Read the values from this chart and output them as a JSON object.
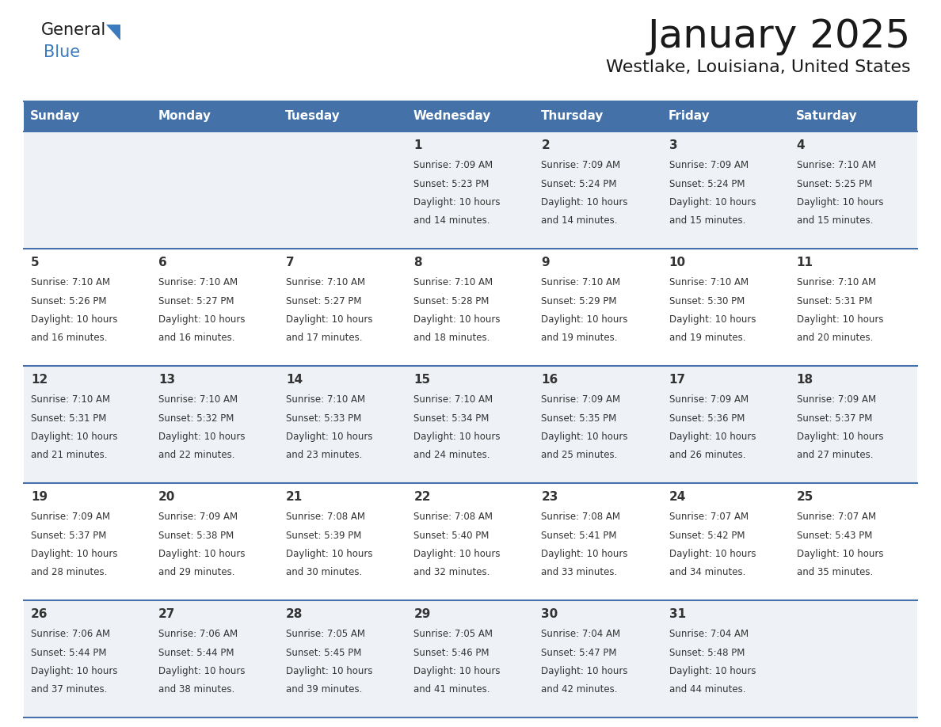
{
  "title": "January 2025",
  "subtitle": "Westlake, Louisiana, United States",
  "header_color": "#4472a8",
  "header_text_color": "#ffffff",
  "day_names": [
    "Sunday",
    "Monday",
    "Tuesday",
    "Wednesday",
    "Thursday",
    "Friday",
    "Saturday"
  ],
  "background_color": "#ffffff",
  "cell_bg_even": "#eef2f7",
  "cell_bg_odd": "#ffffff",
  "cell_border_color": "#4472a8",
  "text_color": "#333333",
  "title_fontsize": 36,
  "subtitle_fontsize": 16,
  "header_fontsize": 11,
  "day_num_fontsize": 11,
  "info_fontsize": 8.5,
  "days_data": [
    {
      "day": 1,
      "col": 3,
      "row": 0,
      "sunrise": "7:09 AM",
      "sunset": "5:23 PM",
      "daylight_hours": 10,
      "daylight_minutes": 14
    },
    {
      "day": 2,
      "col": 4,
      "row": 0,
      "sunrise": "7:09 AM",
      "sunset": "5:24 PM",
      "daylight_hours": 10,
      "daylight_minutes": 14
    },
    {
      "day": 3,
      "col": 5,
      "row": 0,
      "sunrise": "7:09 AM",
      "sunset": "5:24 PM",
      "daylight_hours": 10,
      "daylight_minutes": 15
    },
    {
      "day": 4,
      "col": 6,
      "row": 0,
      "sunrise": "7:10 AM",
      "sunset": "5:25 PM",
      "daylight_hours": 10,
      "daylight_minutes": 15
    },
    {
      "day": 5,
      "col": 0,
      "row": 1,
      "sunrise": "7:10 AM",
      "sunset": "5:26 PM",
      "daylight_hours": 10,
      "daylight_minutes": 16
    },
    {
      "day": 6,
      "col": 1,
      "row": 1,
      "sunrise": "7:10 AM",
      "sunset": "5:27 PM",
      "daylight_hours": 10,
      "daylight_minutes": 16
    },
    {
      "day": 7,
      "col": 2,
      "row": 1,
      "sunrise": "7:10 AM",
      "sunset": "5:27 PM",
      "daylight_hours": 10,
      "daylight_minutes": 17
    },
    {
      "day": 8,
      "col": 3,
      "row": 1,
      "sunrise": "7:10 AM",
      "sunset": "5:28 PM",
      "daylight_hours": 10,
      "daylight_minutes": 18
    },
    {
      "day": 9,
      "col": 4,
      "row": 1,
      "sunrise": "7:10 AM",
      "sunset": "5:29 PM",
      "daylight_hours": 10,
      "daylight_minutes": 19
    },
    {
      "day": 10,
      "col": 5,
      "row": 1,
      "sunrise": "7:10 AM",
      "sunset": "5:30 PM",
      "daylight_hours": 10,
      "daylight_minutes": 19
    },
    {
      "day": 11,
      "col": 6,
      "row": 1,
      "sunrise": "7:10 AM",
      "sunset": "5:31 PM",
      "daylight_hours": 10,
      "daylight_minutes": 20
    },
    {
      "day": 12,
      "col": 0,
      "row": 2,
      "sunrise": "7:10 AM",
      "sunset": "5:31 PM",
      "daylight_hours": 10,
      "daylight_minutes": 21
    },
    {
      "day": 13,
      "col": 1,
      "row": 2,
      "sunrise": "7:10 AM",
      "sunset": "5:32 PM",
      "daylight_hours": 10,
      "daylight_minutes": 22
    },
    {
      "day": 14,
      "col": 2,
      "row": 2,
      "sunrise": "7:10 AM",
      "sunset": "5:33 PM",
      "daylight_hours": 10,
      "daylight_minutes": 23
    },
    {
      "day": 15,
      "col": 3,
      "row": 2,
      "sunrise": "7:10 AM",
      "sunset": "5:34 PM",
      "daylight_hours": 10,
      "daylight_minutes": 24
    },
    {
      "day": 16,
      "col": 4,
      "row": 2,
      "sunrise": "7:09 AM",
      "sunset": "5:35 PM",
      "daylight_hours": 10,
      "daylight_minutes": 25
    },
    {
      "day": 17,
      "col": 5,
      "row": 2,
      "sunrise": "7:09 AM",
      "sunset": "5:36 PM",
      "daylight_hours": 10,
      "daylight_minutes": 26
    },
    {
      "day": 18,
      "col": 6,
      "row": 2,
      "sunrise": "7:09 AM",
      "sunset": "5:37 PM",
      "daylight_hours": 10,
      "daylight_minutes": 27
    },
    {
      "day": 19,
      "col": 0,
      "row": 3,
      "sunrise": "7:09 AM",
      "sunset": "5:37 PM",
      "daylight_hours": 10,
      "daylight_minutes": 28
    },
    {
      "day": 20,
      "col": 1,
      "row": 3,
      "sunrise": "7:09 AM",
      "sunset": "5:38 PM",
      "daylight_hours": 10,
      "daylight_minutes": 29
    },
    {
      "day": 21,
      "col": 2,
      "row": 3,
      "sunrise": "7:08 AM",
      "sunset": "5:39 PM",
      "daylight_hours": 10,
      "daylight_minutes": 30
    },
    {
      "day": 22,
      "col": 3,
      "row": 3,
      "sunrise": "7:08 AM",
      "sunset": "5:40 PM",
      "daylight_hours": 10,
      "daylight_minutes": 32
    },
    {
      "day": 23,
      "col": 4,
      "row": 3,
      "sunrise": "7:08 AM",
      "sunset": "5:41 PM",
      "daylight_hours": 10,
      "daylight_minutes": 33
    },
    {
      "day": 24,
      "col": 5,
      "row": 3,
      "sunrise": "7:07 AM",
      "sunset": "5:42 PM",
      "daylight_hours": 10,
      "daylight_minutes": 34
    },
    {
      "day": 25,
      "col": 6,
      "row": 3,
      "sunrise": "7:07 AM",
      "sunset": "5:43 PM",
      "daylight_hours": 10,
      "daylight_minutes": 35
    },
    {
      "day": 26,
      "col": 0,
      "row": 4,
      "sunrise": "7:06 AM",
      "sunset": "5:44 PM",
      "daylight_hours": 10,
      "daylight_minutes": 37
    },
    {
      "day": 27,
      "col": 1,
      "row": 4,
      "sunrise": "7:06 AM",
      "sunset": "5:44 PM",
      "daylight_hours": 10,
      "daylight_minutes": 38
    },
    {
      "day": 28,
      "col": 2,
      "row": 4,
      "sunrise": "7:05 AM",
      "sunset": "5:45 PM",
      "daylight_hours": 10,
      "daylight_minutes": 39
    },
    {
      "day": 29,
      "col": 3,
      "row": 4,
      "sunrise": "7:05 AM",
      "sunset": "5:46 PM",
      "daylight_hours": 10,
      "daylight_minutes": 41
    },
    {
      "day": 30,
      "col": 4,
      "row": 4,
      "sunrise": "7:04 AM",
      "sunset": "5:47 PM",
      "daylight_hours": 10,
      "daylight_minutes": 42
    },
    {
      "day": 31,
      "col": 5,
      "row": 4,
      "sunrise": "7:04 AM",
      "sunset": "5:48 PM",
      "daylight_hours": 10,
      "daylight_minutes": 44
    }
  ]
}
